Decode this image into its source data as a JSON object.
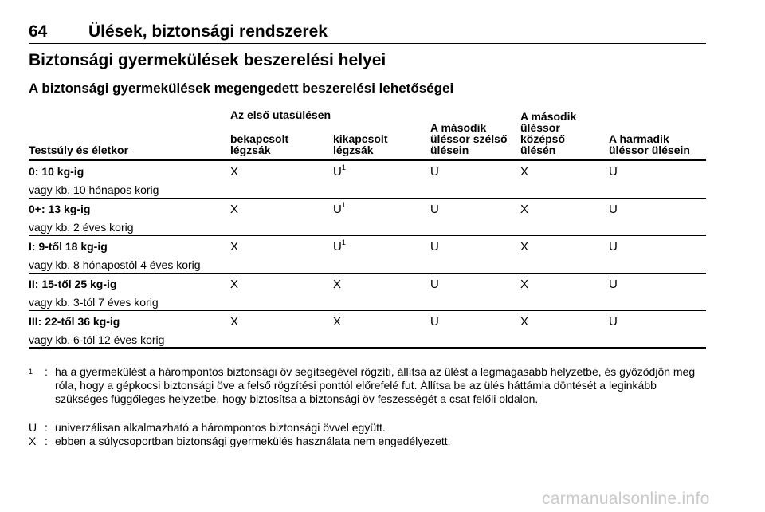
{
  "header": {
    "page_number": "64",
    "section": "Ülések, biztonsági rendszerek"
  },
  "title": "Biztonsági gyermekülések beszerelési helyei",
  "subtitle": "A biztonsági gyermekülések megengedett beszerelési lehetőségei",
  "table": {
    "group_header": "Az első utasülésen",
    "columns": [
      "Testsúly és életkor",
      "bekapcsolt légzsák",
      "kikapcsolt légzsák",
      "A második üléssor szélső ülésein",
      "A második üléssor középső ülésén",
      "A harmadik üléssor ülésein"
    ],
    "rows": [
      {
        "label": "0: 10 kg-ig",
        "sub": "vagy kb. 10 hónapos korig",
        "cells": [
          "X",
          "U",
          "U",
          "X",
          "U"
        ],
        "footnote_col2": "1"
      },
      {
        "label": "0+: 13 kg-ig",
        "sub": "vagy kb. 2 éves korig",
        "cells": [
          "X",
          "U",
          "U",
          "X",
          "U"
        ],
        "footnote_col2": "1"
      },
      {
        "label": "I: 9-től 18 kg-ig",
        "sub": "vagy kb. 8 hónapostól 4 éves korig",
        "cells": [
          "X",
          "U",
          "U",
          "X",
          "U"
        ],
        "footnote_col2": "1"
      },
      {
        "label": "II: 15-től 25 kg-ig",
        "sub": "vagy kb. 3-tól 7 éves korig",
        "cells": [
          "X",
          "X",
          "U",
          "X",
          "U"
        ],
        "footnote_col2": ""
      },
      {
        "label": "III: 22-től 36 kg-ig",
        "sub": "vagy kb. 6-tól 12 éves korig",
        "cells": [
          "X",
          "X",
          "U",
          "X",
          "U"
        ],
        "footnote_col2": ""
      }
    ]
  },
  "footnotes": [
    {
      "marker": "1",
      "sep": ":",
      "text": "ha a gyermekülést a hárompontos biztonsági öv segítségével rögzíti, állítsa az ülést a legmagasabb helyzetbe, és győződjön meg róla, hogy a gépkocsi biztonsági öve a felső rögzítési ponttól előrefelé fut. Állítsa be az ülés háttámla döntését a leginkább szükséges függőleges helyzetbe, hogy biztosítsa a biztonsági öv feszességét a csat felőli oldalon."
    },
    {
      "marker": "U",
      "sep": ":",
      "text": "univerzálisan alkalmazható a hárompontos biztonsági övvel együtt."
    },
    {
      "marker": "X",
      "sep": ":",
      "text": "ebben a súlycsoportban biztonsági gyermekülés használata nem engedélyezett."
    }
  ],
  "watermark": "carmanualsonline.info"
}
